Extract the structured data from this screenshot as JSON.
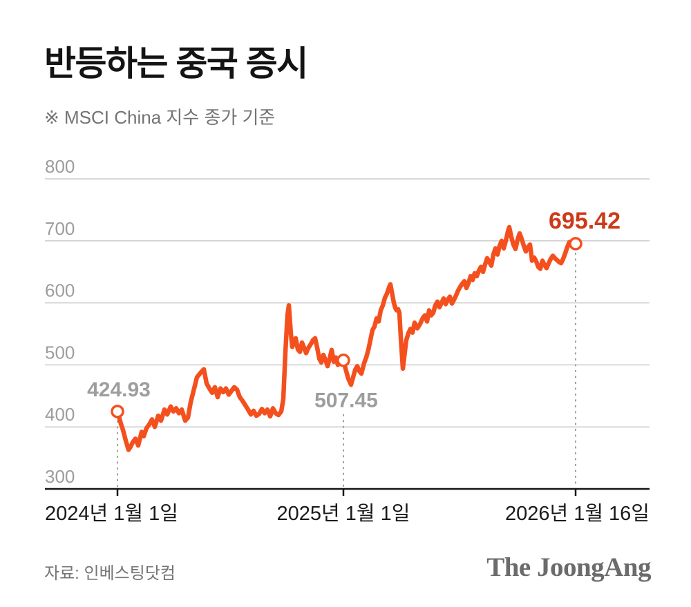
{
  "header": {
    "title": "반등하는 중국 증시",
    "subtitle": "※ MSCI China 지수 종가 기준"
  },
  "footer": {
    "source": "자료: 인베스팅닷컴",
    "logo": "The JoongAng"
  },
  "colors": {
    "line": "#f4501e",
    "grid": "#cbcbcb",
    "axis": "#141414",
    "tick_text": "#1a1a1a",
    "muted": "#9d9d9d",
    "highlight": "#cd3a18",
    "dash": "#a0a0a0"
  },
  "chart_data": {
    "type": "line",
    "title": "반등하는 중국 증시",
    "note": "※ MSCI China 지수 종가 기준",
    "ylim": [
      300,
      800
    ],
    "y_ticks": [
      300,
      400,
      500,
      600,
      700,
      800
    ],
    "grid": true,
    "x_ticks": [
      {
        "t": 0.0,
        "label": "2024년 1월 1일",
        "anchor": "start"
      },
      {
        "t": 0.4932,
        "label": "2025년 1월 1일",
        "anchor": "middle"
      },
      {
        "t": 1.0,
        "label": "2026년 1월 16일",
        "anchor": "end"
      }
    ],
    "annotations": [
      {
        "t": 0.0,
        "value": 424.93,
        "label": "424.93",
        "placement": "above",
        "use_highlight": false,
        "dx": 2,
        "emphasis": false
      },
      {
        "t": 0.4932,
        "value": 507.45,
        "label": "507.45",
        "placement": "below",
        "use_highlight": false,
        "dx": 4,
        "emphasis": false
      },
      {
        "t": 1.0,
        "value": 695.42,
        "label": "695.42",
        "placement": "above",
        "use_highlight": true,
        "dx": 13,
        "emphasis": true
      }
    ],
    "points": [
      [
        0.0,
        424.93
      ],
      [
        0.0075,
        405
      ],
      [
        0.0121,
        395
      ],
      [
        0.0181,
        378
      ],
      [
        0.0241,
        363
      ],
      [
        0.0287,
        368
      ],
      [
        0.0332,
        375
      ],
      [
        0.0392,
        381
      ],
      [
        0.0452,
        370
      ],
      [
        0.0528,
        392
      ],
      [
        0.0573,
        385
      ],
      [
        0.0633,
        398
      ],
      [
        0.0694,
        404
      ],
      [
        0.0754,
        412
      ],
      [
        0.0814,
        400
      ],
      [
        0.089,
        418
      ],
      [
        0.095,
        410
      ],
      [
        0.1026,
        428
      ],
      [
        0.1086,
        420
      ],
      [
        0.1161,
        433
      ],
      [
        0.1222,
        425
      ],
      [
        0.1282,
        430
      ],
      [
        0.1342,
        422
      ],
      [
        0.1403,
        428
      ],
      [
        0.1478,
        410
      ],
      [
        0.1538,
        415
      ],
      [
        0.1599,
        440
      ],
      [
        0.1674,
        462
      ],
      [
        0.1735,
        480
      ],
      [
        0.181,
        487
      ],
      [
        0.1886,
        493
      ],
      [
        0.1946,
        470
      ],
      [
        0.2006,
        462
      ],
      [
        0.2066,
        455
      ],
      [
        0.2127,
        464
      ],
      [
        0.2187,
        448
      ],
      [
        0.2247,
        462
      ],
      [
        0.2308,
        456
      ],
      [
        0.2368,
        462
      ],
      [
        0.2428,
        452
      ],
      [
        0.2489,
        458
      ],
      [
        0.2549,
        464
      ],
      [
        0.2609,
        460
      ],
      [
        0.267,
        448
      ],
      [
        0.273,
        442
      ],
      [
        0.279,
        435
      ],
      [
        0.2851,
        428
      ],
      [
        0.2911,
        420
      ],
      [
        0.2971,
        426
      ],
      [
        0.3032,
        418
      ],
      [
        0.3092,
        421
      ],
      [
        0.3152,
        429
      ],
      [
        0.3213,
        422
      ],
      [
        0.3273,
        428
      ],
      [
        0.3333,
        417
      ],
      [
        0.3394,
        430
      ],
      [
        0.3454,
        422
      ],
      [
        0.3514,
        419
      ],
      [
        0.3575,
        425
      ],
      [
        0.362,
        445
      ],
      [
        0.3665,
        520
      ],
      [
        0.371,
        580
      ],
      [
        0.3741,
        596
      ],
      [
        0.3786,
        550
      ],
      [
        0.3816,
        529
      ],
      [
        0.3861,
        540
      ],
      [
        0.3891,
        543
      ],
      [
        0.3937,
        525
      ],
      [
        0.3982,
        521
      ],
      [
        0.4027,
        536
      ],
      [
        0.4072,
        528
      ],
      [
        0.4118,
        519
      ],
      [
        0.4163,
        527
      ],
      [
        0.4223,
        534
      ],
      [
        0.4269,
        540
      ],
      [
        0.4314,
        543
      ],
      [
        0.4359,
        528
      ],
      [
        0.4405,
        510
      ],
      [
        0.445,
        504
      ],
      [
        0.4495,
        516
      ],
      [
        0.454,
        508
      ],
      [
        0.4586,
        498
      ],
      [
        0.4631,
        510
      ],
      [
        0.4676,
        524
      ],
      [
        0.4721,
        505
      ],
      [
        0.4766,
        512
      ],
      [
        0.4812,
        500
      ],
      [
        0.4857,
        508
      ],
      [
        0.4902,
        510
      ],
      [
        0.4932,
        507.45
      ],
      [
        0.4992,
        490
      ],
      [
        0.5038,
        478
      ],
      [
        0.5098,
        468
      ],
      [
        0.5143,
        480
      ],
      [
        0.5189,
        492
      ],
      [
        0.5234,
        498
      ],
      [
        0.5279,
        490
      ],
      [
        0.5324,
        486
      ],
      [
        0.5385,
        503
      ],
      [
        0.543,
        512
      ],
      [
        0.5475,
        524
      ],
      [
        0.552,
        540
      ],
      [
        0.5566,
        556
      ],
      [
        0.5611,
        562
      ],
      [
        0.5656,
        575
      ],
      [
        0.5701,
        570
      ],
      [
        0.5747,
        588
      ],
      [
        0.5792,
        596
      ],
      [
        0.5837,
        608
      ],
      [
        0.5882,
        615
      ],
      [
        0.5928,
        625
      ],
      [
        0.5958,
        630
      ],
      [
        0.6003,
        612
      ],
      [
        0.6033,
        600
      ],
      [
        0.6063,
        592
      ],
      [
        0.6094,
        588
      ],
      [
        0.6124,
        590
      ],
      [
        0.6154,
        584
      ],
      [
        0.6184,
        545
      ],
      [
        0.6229,
        494
      ],
      [
        0.6275,
        522
      ],
      [
        0.6305,
        540
      ],
      [
        0.635,
        551
      ],
      [
        0.6395,
        558
      ],
      [
        0.6441,
        552
      ],
      [
        0.6486,
        568
      ],
      [
        0.6546,
        559
      ],
      [
        0.6606,
        566
      ],
      [
        0.6667,
        576
      ],
      [
        0.6712,
        580
      ],
      [
        0.6757,
        570
      ],
      [
        0.6803,
        588
      ],
      [
        0.6848,
        580
      ],
      [
        0.6893,
        584
      ],
      [
        0.6938,
        596
      ],
      [
        0.6983,
        602
      ],
      [
        0.7029,
        593
      ],
      [
        0.7074,
        600
      ],
      [
        0.7119,
        607
      ],
      [
        0.7164,
        598
      ],
      [
        0.721,
        605
      ],
      [
        0.7255,
        610
      ],
      [
        0.73,
        599
      ],
      [
        0.7345,
        605
      ],
      [
        0.7391,
        612
      ],
      [
        0.7436,
        620
      ],
      [
        0.7481,
        626
      ],
      [
        0.7526,
        631
      ],
      [
        0.7572,
        635
      ],
      [
        0.7617,
        624
      ],
      [
        0.7662,
        632
      ],
      [
        0.7707,
        643
      ],
      [
        0.7753,
        637
      ],
      [
        0.7798,
        648
      ],
      [
        0.7843,
        643
      ],
      [
        0.7888,
        652
      ],
      [
        0.7934,
        658
      ],
      [
        0.7979,
        650
      ],
      [
        0.8024,
        662
      ],
      [
        0.8069,
        672
      ],
      [
        0.8115,
        666
      ],
      [
        0.816,
        660
      ],
      [
        0.8205,
        678
      ],
      [
        0.825,
        688
      ],
      [
        0.8296,
        678
      ],
      [
        0.8341,
        692
      ],
      [
        0.8386,
        700
      ],
      [
        0.8431,
        688
      ],
      [
        0.8477,
        700
      ],
      [
        0.8522,
        715
      ],
      [
        0.8552,
        722
      ],
      [
        0.8597,
        706
      ],
      [
        0.8643,
        694
      ],
      [
        0.8688,
        687
      ],
      [
        0.8733,
        702
      ],
      [
        0.8778,
        712
      ],
      [
        0.8824,
        703
      ],
      [
        0.8869,
        692
      ],
      [
        0.8914,
        683
      ],
      [
        0.8959,
        690
      ],
      [
        0.9005,
        694
      ],
      [
        0.905,
        668
      ],
      [
        0.9095,
        673
      ],
      [
        0.914,
        667
      ],
      [
        0.9186,
        658
      ],
      [
        0.9231,
        655
      ],
      [
        0.9276,
        668
      ],
      [
        0.9321,
        661
      ],
      [
        0.9367,
        656
      ],
      [
        0.9412,
        664
      ],
      [
        0.9457,
        671
      ],
      [
        0.9502,
        676
      ],
      [
        0.9548,
        672
      ],
      [
        0.9593,
        669
      ],
      [
        0.9638,
        666
      ],
      [
        0.9683,
        664
      ],
      [
        0.9729,
        671
      ],
      [
        0.9774,
        680
      ],
      [
        0.9819,
        690
      ],
      [
        0.9864,
        698
      ],
      [
        0.991,
        699
      ],
      [
        0.994,
        693
      ],
      [
        0.997,
        690
      ],
      [
        1.0,
        695.42
      ]
    ]
  }
}
